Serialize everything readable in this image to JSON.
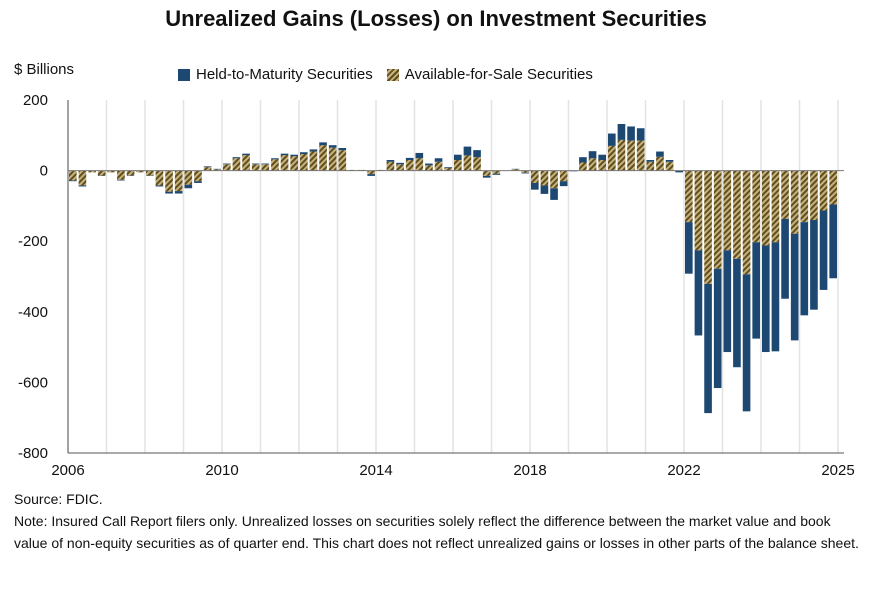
{
  "chart_data": {
    "type": "bar",
    "stacked": true,
    "title": "Unrealized Gains (Losses) on Investment Securities",
    "ylabel": "$ Billions",
    "ylim": [
      -800,
      200
    ],
    "yticks": [
      200,
      0,
      -200,
      -400,
      -600,
      -800
    ],
    "xticks": [
      "2006",
      "2010",
      "2014",
      "2018",
      "2022",
      "2025"
    ],
    "start_year": 2006,
    "legend_position": "top",
    "series": [
      {
        "name": "Held-to-Maturity Securities",
        "color": "#1d4872",
        "values": [
          -2,
          -3,
          0,
          -1,
          0,
          -2,
          -1,
          0,
          -1,
          -3,
          -5,
          -7,
          -10,
          -5,
          2,
          1,
          2,
          3,
          4,
          2,
          2,
          3,
          4,
          4,
          5,
          6,
          8,
          7,
          6,
          0,
          0,
          -5,
          0,
          5,
          4,
          6,
          15,
          5,
          10,
          2,
          15,
          25,
          20,
          -5,
          -3,
          0,
          1,
          -2,
          -19,
          -24,
          -33,
          -14,
          -1,
          15,
          20,
          15,
          35,
          45,
          40,
          35,
          5,
          15,
          5,
          -4,
          -146,
          -241,
          -366,
          -338,
          -288,
          -307,
          -388,
          -273,
          -302,
          -309,
          -226,
          -302,
          -264,
          -254,
          -225,
          -209
        ]
      },
      {
        "name": "Available-for-Sale Securities",
        "color": "#8a7536",
        "values": [
          -28,
          -42,
          -5,
          -14,
          -5,
          -26,
          -14,
          -5,
          -14,
          -42,
          -60,
          -58,
          -40,
          -30,
          10,
          4,
          18,
          35,
          44,
          18,
          18,
          32,
          44,
          41,
          47,
          54,
          72,
          65,
          58,
          2,
          2,
          -10,
          2,
          25,
          18,
          30,
          35,
          15,
          25,
          8,
          30,
          43,
          38,
          -15,
          -9,
          0,
          4,
          -6,
          -35,
          -42,
          -50,
          -30,
          -1,
          23,
          35,
          30,
          70,
          87,
          85,
          85,
          25,
          39,
          25,
          -1,
          -146,
          -226,
          -321,
          -278,
          -226,
          -250,
          -294,
          -203,
          -212,
          -203,
          -137,
          -179,
          -146,
          -140,
          -113,
          -96
        ]
      }
    ],
    "source": "Source: FDIC.",
    "note": "Note: Insured Call Report filers only. Unrealized losses on securities solely reflect the difference between the market value and book value of non-equity securities as of quarter end. This chart does not reflect unrealized gains or losses in other parts of the balance sheet."
  }
}
